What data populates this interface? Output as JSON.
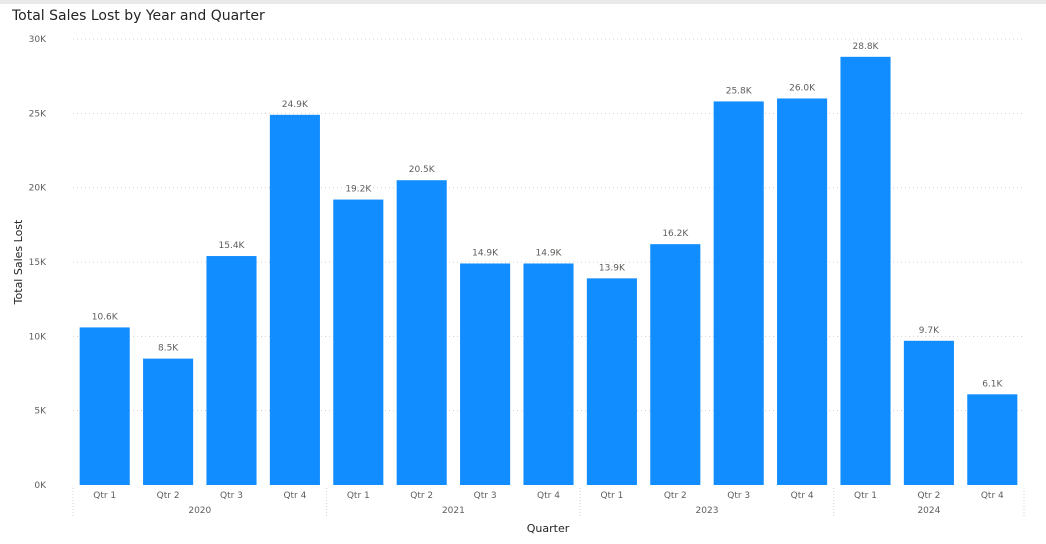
{
  "chart_data": {
    "type": "bar",
    "title": "Total Sales Lost by Year and Quarter",
    "xlabel": "Quarter",
    "ylabel": "Total Sales Lost",
    "ylim": [
      0,
      30000
    ],
    "y_ticks": [
      "0K",
      "5K",
      "10K",
      "15K",
      "20K",
      "25K",
      "30K"
    ],
    "y_tick_values": [
      0,
      5000,
      10000,
      15000,
      20000,
      25000,
      30000
    ],
    "grid": true,
    "bar_color": "#118DFF",
    "categories": [
      {
        "year": "2020",
        "quarter": "Qtr 1"
      },
      {
        "year": "2020",
        "quarter": "Qtr 2"
      },
      {
        "year": "2020",
        "quarter": "Qtr 3"
      },
      {
        "year": "2020",
        "quarter": "Qtr 4"
      },
      {
        "year": "2021",
        "quarter": "Qtr 1"
      },
      {
        "year": "2021",
        "quarter": "Qtr 2"
      },
      {
        "year": "2021",
        "quarter": "Qtr 3"
      },
      {
        "year": "2021",
        "quarter": "Qtr 4"
      },
      {
        "year": "2023",
        "quarter": "Qtr 1"
      },
      {
        "year": "2023",
        "quarter": "Qtr 2"
      },
      {
        "year": "2023",
        "quarter": "Qtr 3"
      },
      {
        "year": "2023",
        "quarter": "Qtr 4"
      },
      {
        "year": "2024",
        "quarter": "Qtr 1"
      },
      {
        "year": "2024",
        "quarter": "Qtr 2"
      },
      {
        "year": "2024",
        "quarter": "Qtr 4"
      }
    ],
    "years": [
      "2020",
      "2021",
      "2023",
      "2024"
    ],
    "values": [
      10600,
      8500,
      15400,
      24900,
      19200,
      20500,
      14900,
      14900,
      13900,
      16200,
      25800,
      26000,
      28800,
      9700,
      6100
    ],
    "value_labels": [
      "10.6K",
      "8.5K",
      "15.4K",
      "24.9K",
      "19.2K",
      "20.5K",
      "14.9K",
      "14.9K",
      "13.9K",
      "16.2K",
      "25.8K",
      "26.0K",
      "28.8K",
      "9.7K",
      "6.1K"
    ]
  }
}
